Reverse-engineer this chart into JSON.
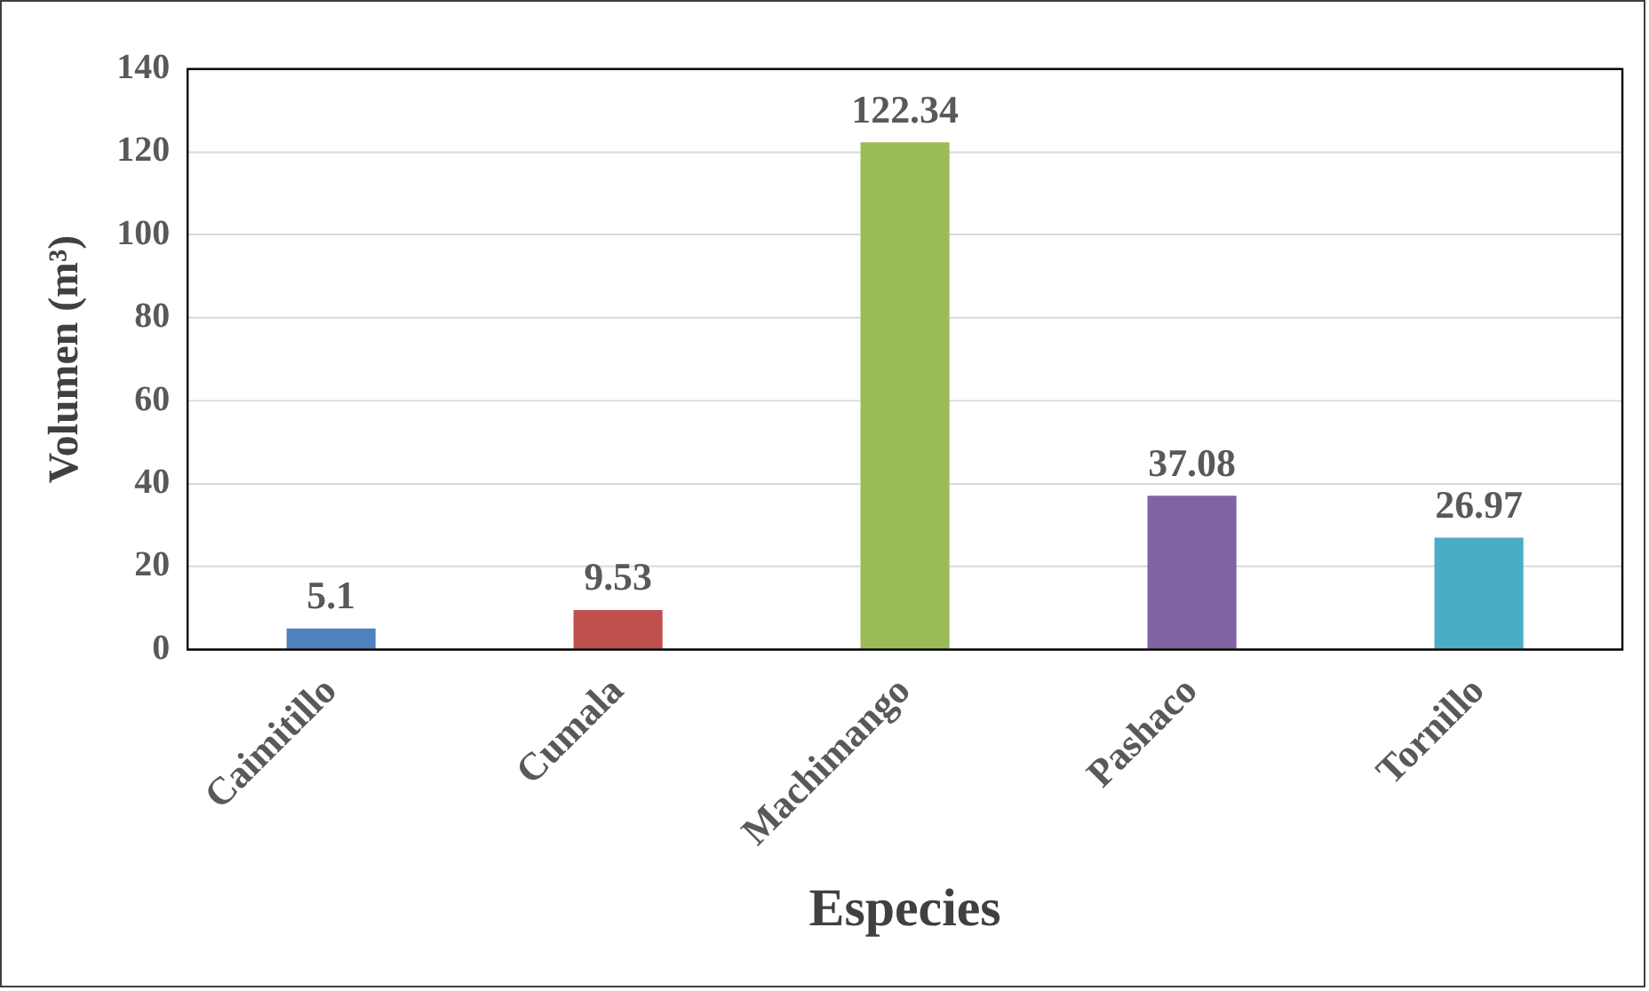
{
  "chart_data": {
    "type": "bar",
    "xlabel": "Especies",
    "ylabel": "Volumen (m³)",
    "categories": [
      "Caimitillo",
      "Cumala",
      "Machimango",
      "Pashaco",
      "Tornillo"
    ],
    "values": [
      5.1,
      9.53,
      122.34,
      37.08,
      26.97
    ],
    "colors": [
      "#4f81bd",
      "#c0504d",
      "#9bbb59",
      "#8064a2",
      "#4bacc6"
    ],
    "ylim": [
      0,
      140
    ],
    "yticks": [
      0,
      20,
      40,
      60,
      80,
      100,
      120,
      140
    ],
    "grid": "y",
    "data_labels": true,
    "legend": false
  }
}
